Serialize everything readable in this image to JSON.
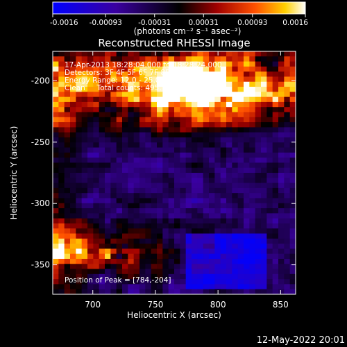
{
  "chart_data": {
    "type": "heatmap",
    "title": "Reconstructed RHESSI Image",
    "xlabel": "Heliocentric X (arcsec)",
    "ylabel": "Heliocentric Y (arcsec)",
    "xlim": [
      668,
      862
    ],
    "ylim": [
      -374,
      -176
    ],
    "xticks": [
      700,
      750,
      800,
      850
    ],
    "yticks": [
      -200,
      -250,
      -300,
      -350
    ],
    "grid": false,
    "colorbar": {
      "position": "top",
      "ticks": [
        "-0.0016",
        "-0.00093",
        "-0.00031",
        "0.00031",
        "0.00093",
        "0.0016"
      ],
      "tick_values": [
        -0.0016,
        -0.00093,
        -0.00031,
        0.00031,
        0.00093,
        0.0016
      ],
      "range": [
        -0.0016,
        0.0016
      ],
      "label": "(photons cm⁻² s⁻¹ asec⁻²)"
    },
    "annotations": [
      "17-Apr-2013 18:28:04.000 to 18:28:24.000",
      "Detectors: 3F 4F 5F 6F 7F 8F, Att 0",
      "Energy Range: 12.0 - 25.0 keV",
      "Clean     Total counts: 495.",
      "Position of Peak = [784,-204]"
    ],
    "peak": [
      784,
      -204
    ],
    "grid_shape": [
      42,
      48
    ]
  },
  "footer": {
    "timestamp": "12-May-2022 20:01"
  }
}
